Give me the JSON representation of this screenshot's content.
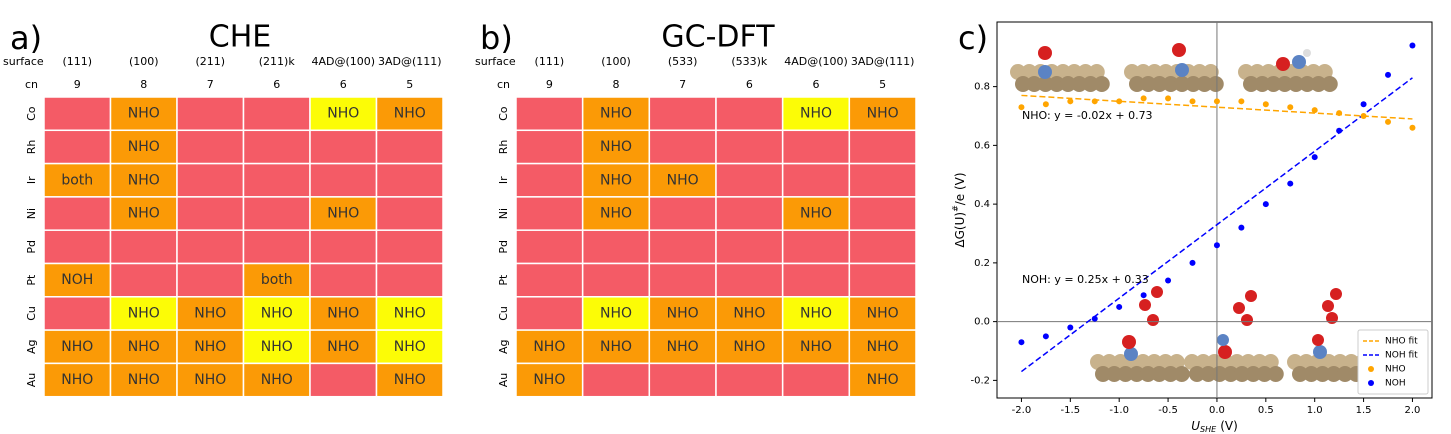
{
  "chart_data": [
    {
      "type": "heatmap",
      "panel": "a)",
      "title": "CHE",
      "row_header": "surface",
      "cn_header": "cn",
      "columns": [
        "(111)",
        "(100)",
        "(211)",
        "(211)k",
        "4AD@(100)",
        "3AD@(111)"
      ],
      "cn": [
        9,
        8,
        7,
        6,
        6,
        5
      ],
      "rows": [
        "Co",
        "Rh",
        "Ir",
        "Ni",
        "Pd",
        "Pt",
        "Cu",
        "Ag",
        "Au"
      ],
      "cells": [
        [
          {
            "color": "#f45b66"
          },
          {
            "label": "NHO",
            "color": "#fb9a06"
          },
          {
            "color": "#f45b66"
          },
          {
            "color": "#f45b66"
          },
          {
            "label": "NHO",
            "color": "#fcfc06"
          },
          {
            "label": "NHO",
            "color": "#fb9a06"
          }
        ],
        [
          {
            "color": "#f45b66"
          },
          {
            "label": "NHO",
            "color": "#fb9a06"
          },
          {
            "color": "#f45b66"
          },
          {
            "color": "#f45b66"
          },
          {
            "color": "#f45b66"
          },
          {
            "color": "#f45b66"
          }
        ],
        [
          {
            "label": "both",
            "color": "#fb9a06"
          },
          {
            "label": "NHO",
            "color": "#fb9a06"
          },
          {
            "color": "#f45b66"
          },
          {
            "color": "#f45b66"
          },
          {
            "color": "#f45b66"
          },
          {
            "color": "#f45b66"
          }
        ],
        [
          {
            "color": "#f45b66"
          },
          {
            "label": "NHO",
            "color": "#fb9a06"
          },
          {
            "color": "#f45b66"
          },
          {
            "color": "#f45b66"
          },
          {
            "label": "NHO",
            "color": "#fb9a06"
          },
          {
            "color": "#f45b66"
          }
        ],
        [
          {
            "color": "#f45b66"
          },
          {
            "color": "#f45b66"
          },
          {
            "color": "#f45b66"
          },
          {
            "color": "#f45b66"
          },
          {
            "color": "#f45b66"
          },
          {
            "color": "#f45b66"
          }
        ],
        [
          {
            "label": "NOH",
            "color": "#fb9a06"
          },
          {
            "color": "#f45b66"
          },
          {
            "color": "#f45b66"
          },
          {
            "label": "both",
            "color": "#fb9a06"
          },
          {
            "color": "#f45b66"
          },
          {
            "color": "#f45b66"
          }
        ],
        [
          {
            "color": "#f45b66"
          },
          {
            "label": "NHO",
            "color": "#fcfc06"
          },
          {
            "label": "NHO",
            "color": "#fb9a06"
          },
          {
            "label": "NHO",
            "color": "#fcfc06"
          },
          {
            "label": "NHO",
            "color": "#fb9a06"
          },
          {
            "label": "NHO",
            "color": "#fcfc06"
          }
        ],
        [
          {
            "label": "NHO",
            "color": "#fb9a06"
          },
          {
            "label": "NHO",
            "color": "#fb9a06"
          },
          {
            "label": "NHO",
            "color": "#fb9a06"
          },
          {
            "label": "NHO",
            "color": "#fcfc06"
          },
          {
            "label": "NHO",
            "color": "#fb9a06"
          },
          {
            "label": "NHO",
            "color": "#fcfc06"
          }
        ],
        [
          {
            "label": "NHO",
            "color": "#fb9a06"
          },
          {
            "label": "NHO",
            "color": "#fb9a06"
          },
          {
            "label": "NHO",
            "color": "#fb9a06"
          },
          {
            "label": "NHO",
            "color": "#fb9a06"
          },
          {
            "color": "#f45b66"
          },
          {
            "label": "NHO",
            "color": "#fb9a06"
          }
        ]
      ]
    },
    {
      "type": "heatmap",
      "panel": "b)",
      "title": "GC-DFT",
      "row_header": "surface",
      "cn_header": "cn",
      "columns": [
        "(111)",
        "(100)",
        "(533)",
        "(533)k",
        "4AD@(100)",
        "3AD@(111)"
      ],
      "cn": [
        9,
        8,
        7,
        6,
        6,
        5
      ],
      "rows": [
        "Co",
        "Rh",
        "Ir",
        "Ni",
        "Pd",
        "Pt",
        "Cu",
        "Ag",
        "Au"
      ],
      "cells": [
        [
          {
            "color": "#f45b66"
          },
          {
            "label": "NHO",
            "color": "#fb9a06"
          },
          {
            "color": "#f45b66"
          },
          {
            "color": "#f45b66"
          },
          {
            "label": "NHO",
            "color": "#fcfc06"
          },
          {
            "label": "NHO",
            "color": "#fb9a06"
          }
        ],
        [
          {
            "color": "#f45b66"
          },
          {
            "label": "NHO",
            "color": "#fb9a06"
          },
          {
            "color": "#f45b66"
          },
          {
            "color": "#f45b66"
          },
          {
            "color": "#f45b66"
          },
          {
            "color": "#f45b66"
          }
        ],
        [
          {
            "color": "#f45b66"
          },
          {
            "label": "NHO",
            "color": "#fb9a06"
          },
          {
            "label": "NHO",
            "color": "#fb9a06"
          },
          {
            "color": "#f45b66"
          },
          {
            "color": "#f45b66"
          },
          {
            "color": "#f45b66"
          }
        ],
        [
          {
            "color": "#f45b66"
          },
          {
            "label": "NHO",
            "color": "#fb9a06"
          },
          {
            "color": "#f45b66"
          },
          {
            "color": "#f45b66"
          },
          {
            "label": "NHO",
            "color": "#fb9a06"
          },
          {
            "color": "#f45b66"
          }
        ],
        [
          {
            "color": "#f45b66"
          },
          {
            "color": "#f45b66"
          },
          {
            "color": "#f45b66"
          },
          {
            "color": "#f45b66"
          },
          {
            "color": "#f45b66"
          },
          {
            "color": "#f45b66"
          }
        ],
        [
          {
            "color": "#f45b66"
          },
          {
            "color": "#f45b66"
          },
          {
            "color": "#f45b66"
          },
          {
            "color": "#f45b66"
          },
          {
            "color": "#f45b66"
          },
          {
            "color": "#f45b66"
          }
        ],
        [
          {
            "color": "#f45b66"
          },
          {
            "label": "NHO",
            "color": "#fcfc06"
          },
          {
            "label": "NHO",
            "color": "#fb9a06"
          },
          {
            "label": "NHO",
            "color": "#fb9a06"
          },
          {
            "label": "NHO",
            "color": "#fcfc06"
          },
          {
            "label": "NHO",
            "color": "#fb9a06"
          }
        ],
        [
          {
            "label": "NHO",
            "color": "#fb9a06"
          },
          {
            "label": "NHO",
            "color": "#fb9a06"
          },
          {
            "label": "NHO",
            "color": "#fb9a06"
          },
          {
            "label": "NHO",
            "color": "#fb9a06"
          },
          {
            "label": "NHO",
            "color": "#fb9a06"
          },
          {
            "label": "NHO",
            "color": "#fb9a06"
          }
        ],
        [
          {
            "label": "NHO",
            "color": "#fb9a06"
          },
          {
            "color": "#f45b66"
          },
          {
            "color": "#f45b66"
          },
          {
            "color": "#f45b66"
          },
          {
            "color": "#f45b66"
          },
          {
            "label": "NHO",
            "color": "#fb9a06"
          }
        ]
      ]
    },
    {
      "type": "scatter",
      "panel": "c)",
      "xlabel": "U",
      "xlabel_sub": "SHE",
      "xlabel_unit": "(V)",
      "ylabel": "ΔG(U)",
      "ylabel_sup": "#",
      "ylabel_rest": "/e (V)",
      "xlim": [
        -2.25,
        2.2
      ],
      "ylim": [
        -0.26,
        1.02
      ],
      "xticks": [
        {
          "value": -2.0,
          "label": "-2.0"
        },
        -1.5,
        {
          "value": -1.0,
          "label": "-1.0"
        },
        -0.5,
        {
          "value": 0.0,
          "label": "0.0"
        },
        0.5,
        {
          "value": 1.0,
          "label": "1.0"
        },
        1.5,
        {
          "value": 2.0,
          "label": "2.0"
        }
      ],
      "yticks": [
        -0.2,
        {
          "value": 0.0,
          "label": "0.0"
        },
        0.2,
        0.4,
        0.6,
        0.8
      ],
      "zero_lines": true,
      "legend": "lower right",
      "series": [
        {
          "name": "NHO fit",
          "color": "#ffa500",
          "style": "dashed",
          "x": [
            -2.0,
            2.0
          ],
          "values": [
            0.77,
            0.69
          ]
        },
        {
          "name": "NOH fit",
          "color": "#0000ff",
          "style": "dashed",
          "x": [
            -2.0,
            2.0
          ],
          "values": [
            -0.17,
            0.83
          ]
        },
        {
          "name": "NHO",
          "color": "#ffa500",
          "style": "points",
          "x": [
            -2.0,
            -1.75,
            -1.5,
            -1.25,
            -1.0,
            -0.75,
            -0.5,
            -0.25,
            0.0,
            0.25,
            0.5,
            0.75,
            1.0,
            1.25,
            1.5,
            1.75,
            2.0
          ],
          "values": [
            0.73,
            0.74,
            0.75,
            0.75,
            0.75,
            0.76,
            0.76,
            0.75,
            0.75,
            0.75,
            0.74,
            0.73,
            0.72,
            0.71,
            0.7,
            0.68,
            0.66
          ]
        },
        {
          "name": "NOH",
          "color": "#0000ff",
          "style": "points",
          "x": [
            -2.0,
            -1.75,
            -1.5,
            -1.25,
            -1.0,
            -0.75,
            -0.5,
            -0.25,
            0.0,
            0.25,
            0.5,
            0.75,
            1.0,
            1.25,
            1.5,
            1.75,
            2.0
          ],
          "values": [
            -0.07,
            -0.05,
            -0.02,
            0.01,
            0.05,
            0.09,
            0.14,
            0.2,
            0.26,
            0.32,
            0.4,
            0.47,
            0.56,
            0.65,
            0.74,
            0.84,
            0.94
          ]
        }
      ],
      "annotations": [
        "NHO: y = -0.02x + 0.73",
        "NOH: y = 0.25x + 0.33"
      ]
    }
  ]
}
